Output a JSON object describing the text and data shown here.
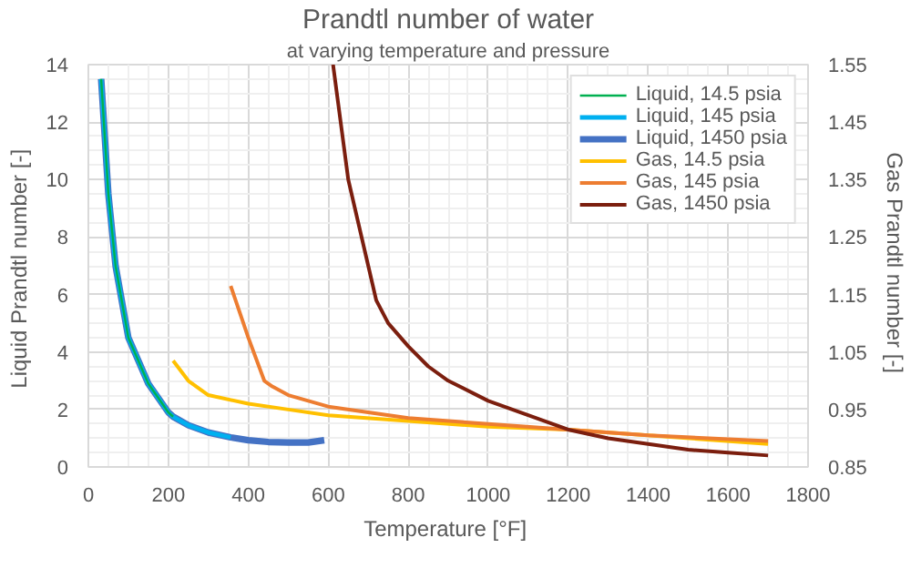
{
  "chart_data": {
    "type": "line",
    "title": "Prandtl number of water",
    "subtitle": "at varying temperature and pressure",
    "xlabel": "Temperature  [°F]",
    "ylabel": "Liquid Prandtl number  [-]",
    "y2label": "Gas Prandtl number  [-]",
    "xlim": [
      0,
      1800
    ],
    "xticks": [
      0,
      200,
      400,
      600,
      800,
      1000,
      1200,
      1400,
      1600,
      1800
    ],
    "ylim": [
      0,
      14
    ],
    "yticks": [
      0,
      2,
      4,
      6,
      8,
      10,
      12,
      14
    ],
    "y2lim": [
      0.85,
      1.55
    ],
    "y2ticks": [
      0.85,
      0.95,
      1.05,
      1.15,
      1.25,
      1.35,
      1.45,
      1.55
    ],
    "grid": true,
    "legend": "top right",
    "line_style": "solid",
    "marker": "none",
    "series": [
      {
        "name": "Liquid, 14.5 psia",
        "color": "#00b050",
        "x": [
          32,
          50,
          68,
          100,
          150,
          200,
          212
        ],
        "values": [
          13.5,
          9.5,
          7.0,
          4.5,
          2.9,
          1.9,
          1.75
        ]
      },
      {
        "name": "Liquid, 145 psia",
        "color": "#00b0f0",
        "x": [
          32,
          50,
          68,
          100,
          150,
          200,
          212,
          250,
          300,
          356
        ],
        "values": [
          13.5,
          9.5,
          7.0,
          4.5,
          2.9,
          1.9,
          1.75,
          1.45,
          1.2,
          1.03
        ]
      },
      {
        "name": "Liquid, 1450 psia",
        "color": "#4472c4",
        "x": [
          32,
          50,
          68,
          100,
          150,
          200,
          212,
          250,
          300,
          356,
          400,
          450,
          500,
          550,
          590
        ],
        "values": [
          13.5,
          9.5,
          7.0,
          4.5,
          2.9,
          1.9,
          1.75,
          1.45,
          1.2,
          1.03,
          0.93,
          0.87,
          0.85,
          0.85,
          0.93
        ]
      },
      {
        "name": "Gas, 14.5 psia",
        "color": "#ffc000",
        "axis": "y2",
        "x": [
          212,
          250,
          300,
          400,
          500,
          600,
          800,
          1000,
          1200,
          1400,
          1700
        ],
        "values": [
          1.035,
          1.0,
          0.975,
          0.96,
          0.95,
          0.94,
          0.93,
          0.92,
          0.915,
          0.905,
          0.89
        ]
      },
      {
        "name": "Gas, 145 psia",
        "color": "#ed7d31",
        "axis": "y2",
        "x": [
          356,
          400,
          440,
          460,
          500,
          600,
          800,
          1000,
          1200,
          1400,
          1700
        ],
        "values": [
          1.165,
          1.075,
          1.0,
          0.99,
          0.975,
          0.955,
          0.935,
          0.925,
          0.915,
          0.905,
          0.895
        ]
      },
      {
        "name": "Gas, 1450 psia",
        "color": "#7b1e0e",
        "axis": "y2",
        "x": [
          612,
          650,
          700,
          720,
          750,
          800,
          850,
          900,
          1000,
          1100,
          1200,
          1300,
          1400,
          1500,
          1600,
          1700
        ],
        "values": [
          1.55,
          1.35,
          1.2,
          1.14,
          1.1,
          1.06,
          1.025,
          1.0,
          0.965,
          0.94,
          0.915,
          0.9,
          0.89,
          0.88,
          0.875,
          0.87
        ]
      }
    ]
  }
}
